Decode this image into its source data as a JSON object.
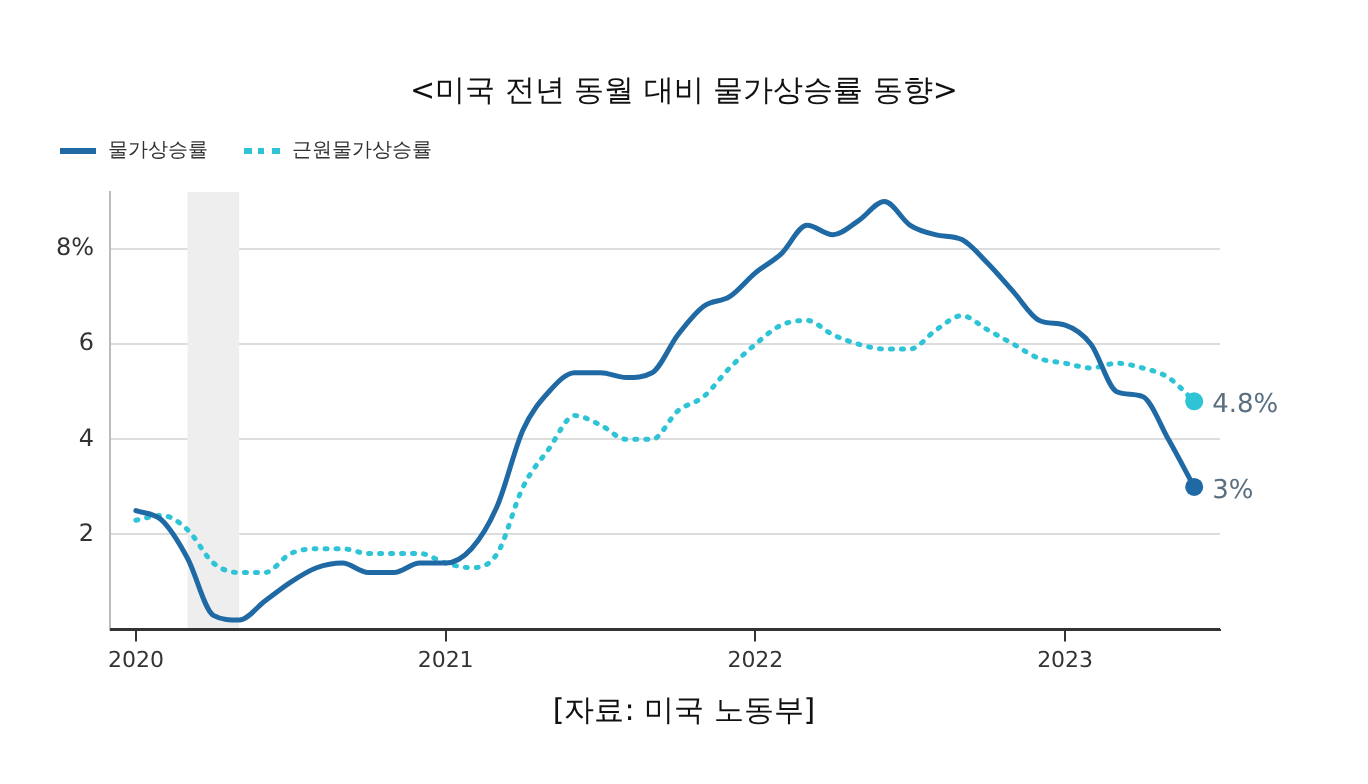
{
  "chart_data": {
    "type": "line",
    "title": "<미국 전년 동월 대비 물가상승률 동향>",
    "annotations": [
      "[자료: 미국 노동부]"
    ],
    "x": [
      "2020-01",
      "2020-02",
      "2020-03",
      "2020-04",
      "2020-05",
      "2020-06",
      "2020-07",
      "2020-08",
      "2020-09",
      "2020-10",
      "2020-11",
      "2020-12",
      "2021-01",
      "2021-02",
      "2021-03",
      "2021-04",
      "2021-05",
      "2021-06",
      "2021-07",
      "2021-08",
      "2021-09",
      "2021-10",
      "2021-11",
      "2021-12",
      "2022-01",
      "2022-02",
      "2022-03",
      "2022-04",
      "2022-05",
      "2022-06",
      "2022-07",
      "2022-08",
      "2022-09",
      "2022-10",
      "2022-11",
      "2022-12",
      "2023-01",
      "2023-02",
      "2023-03",
      "2023-04",
      "2023-05",
      "2023-06"
    ],
    "series": [
      {
        "name": "물가상승률",
        "color": "#1f6aa5",
        "line_style": "solid",
        "values": [
          2.5,
          2.3,
          1.5,
          0.3,
          0.2,
          0.6,
          1.0,
          1.3,
          1.4,
          1.2,
          1.2,
          1.4,
          1.4,
          1.7,
          2.6,
          4.2,
          5.0,
          5.4,
          5.4,
          5.3,
          5.4,
          6.2,
          6.8,
          7.0,
          7.5,
          7.9,
          8.5,
          8.3,
          8.6,
          9.0,
          8.5,
          8.3,
          8.2,
          7.7,
          7.1,
          6.5,
          6.4,
          6.0,
          5.0,
          4.9,
          4.0,
          3.0
        ],
        "value_labels": [
          null,
          null,
          null,
          null,
          null,
          null,
          null,
          null,
          null,
          null,
          null,
          null,
          null,
          null,
          null,
          null,
          null,
          null,
          null,
          null,
          null,
          null,
          null,
          null,
          null,
          null,
          null,
          null,
          null,
          null,
          null,
          null,
          null,
          null,
          null,
          null,
          null,
          null,
          null,
          null,
          null,
          "3%"
        ]
      },
      {
        "name": "근원물가상승률",
        "color": "#2ec4d6",
        "line_style": "dotted",
        "values": [
          2.3,
          2.4,
          2.1,
          1.4,
          1.2,
          1.2,
          1.6,
          1.7,
          1.7,
          1.6,
          1.6,
          1.6,
          1.4,
          1.3,
          1.6,
          3.0,
          3.8,
          4.5,
          4.3,
          4.0,
          4.0,
          4.6,
          4.9,
          5.5,
          6.0,
          6.4,
          6.5,
          6.2,
          6.0,
          5.9,
          5.9,
          6.3,
          6.6,
          6.3,
          6.0,
          5.7,
          5.6,
          5.5,
          5.6,
          5.5,
          5.3,
          4.8
        ],
        "value_labels": [
          null,
          null,
          null,
          null,
          null,
          null,
          null,
          null,
          null,
          null,
          null,
          null,
          null,
          null,
          null,
          null,
          null,
          null,
          null,
          null,
          null,
          null,
          null,
          null,
          null,
          null,
          null,
          null,
          null,
          null,
          null,
          null,
          null,
          null,
          null,
          null,
          null,
          null,
          null,
          null,
          null,
          "4.8%"
        ]
      }
    ],
    "bands": [
      {
        "axis": "x",
        "from": "2020-03",
        "to": "2020-05",
        "color": "#eeeeee"
      }
    ],
    "xlim": [
      "2019-12",
      "2023-07"
    ],
    "xticks": [
      "2020",
      "2021",
      "2022",
      "2023"
    ],
    "ylim": [
      0,
      9.2
    ],
    "yticks": [
      2,
      4,
      6,
      {
        "value": 8,
        "label": "8%"
      }
    ],
    "grid": "y",
    "legend": "top left"
  }
}
